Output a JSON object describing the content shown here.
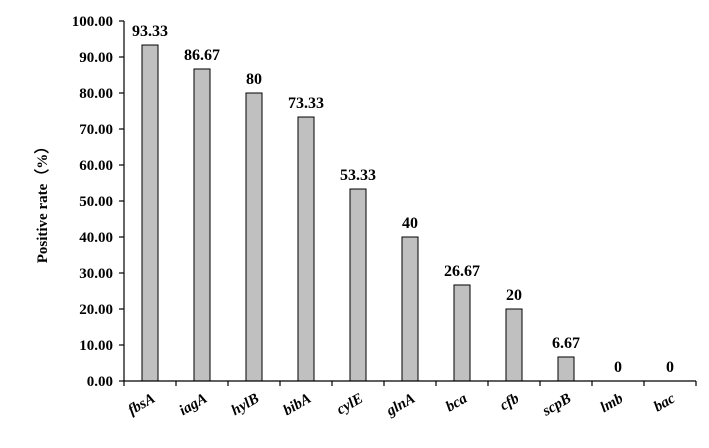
{
  "chart_data": {
    "type": "bar",
    "categories": [
      "fbsA",
      "iagA",
      "hylB",
      "bibA",
      "cylE",
      "glnA",
      "bca",
      "cfb",
      "scpB",
      "lmb",
      "bac"
    ],
    "values": [
      93.33,
      86.67,
      80,
      73.33,
      53.33,
      40,
      26.67,
      20,
      6.67,
      0,
      0
    ],
    "value_labels": [
      "93.33",
      "86.67",
      "80",
      "73.33",
      "53.33",
      "40",
      "26.67",
      "20",
      "6.67",
      "0",
      "0"
    ],
    "ylabel": "Positive rate（%）",
    "xlabel": "",
    "title": "",
    "ylim": [
      0,
      100
    ],
    "yticks": [
      "0.00",
      "10.00",
      "20.00",
      "30.00",
      "40.00",
      "50.00",
      "60.00",
      "70.00",
      "80.00",
      "90.00",
      "100.00"
    ],
    "bar_color": "#c0c0c0",
    "grid": false,
    "legend": "none"
  }
}
